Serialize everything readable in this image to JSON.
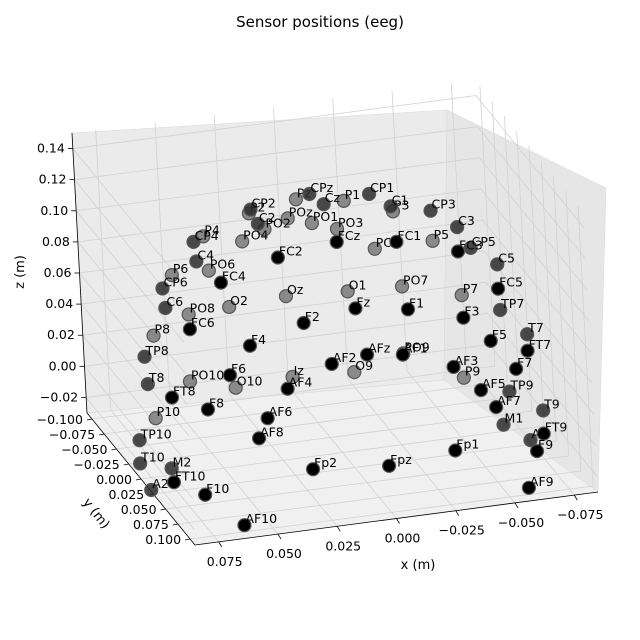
{
  "chart_data": {
    "type": "scatter",
    "title": "Sensor positions (eeg)",
    "xlabel": "x (m)",
    "ylabel": "y (m)",
    "zlabel": "z (m)",
    "x_ticks": [
      "0.075",
      "0.050",
      "0.025",
      "0.000",
      "−0.025",
      "−0.050",
      "−0.075"
    ],
    "y_ticks": [
      "−0.100",
      "−0.075",
      "−0.050",
      "−0.025",
      "0.000",
      "0.025",
      "0.050",
      "0.075",
      "0.100"
    ],
    "z_ticks": [
      "−0.02",
      "0.00",
      "0.02",
      "0.04",
      "0.06",
      "0.08",
      "0.10",
      "0.12",
      "0.14"
    ],
    "xlim": [
      -0.085,
      0.085
    ],
    "ylim": [
      -0.11,
      0.11
    ],
    "zlim": [
      -0.03,
      0.15
    ],
    "grid": true,
    "sensors": [
      {
        "name": "Fp1",
        "x": -0.03,
        "y": 0.09,
        "z": 0.0
      },
      {
        "name": "Fpz",
        "x": 0.0,
        "y": 0.1,
        "z": 0.0
      },
      {
        "name": "Fp2",
        "x": 0.03,
        "y": 0.09,
        "z": 0.0
      },
      {
        "name": "AF9",
        "x": -0.06,
        "y": 0.09,
        "z": -0.03
      },
      {
        "name": "AF7",
        "x": -0.05,
        "y": 0.08,
        "z": 0.02
      },
      {
        "name": "AF5",
        "x": -0.045,
        "y": 0.075,
        "z": 0.03
      },
      {
        "name": "AF3",
        "x": -0.035,
        "y": 0.07,
        "z": 0.045
      },
      {
        "name": "AF1",
        "x": -0.015,
        "y": 0.065,
        "z": 0.055
      },
      {
        "name": "AFz",
        "x": 0.0,
        "y": 0.065,
        "z": 0.058
      },
      {
        "name": "AF2",
        "x": 0.015,
        "y": 0.065,
        "z": 0.055
      },
      {
        "name": "AF4",
        "x": 0.035,
        "y": 0.07,
        "z": 0.045
      },
      {
        "name": "AF6",
        "x": 0.045,
        "y": 0.075,
        "z": 0.03
      },
      {
        "name": "AF8",
        "x": 0.05,
        "y": 0.08,
        "z": 0.02
      },
      {
        "name": "AF10",
        "x": 0.06,
        "y": 0.09,
        "z": -0.03
      },
      {
        "name": "F9",
        "x": -0.07,
        "y": 0.06,
        "z": -0.02
      },
      {
        "name": "F7",
        "x": -0.065,
        "y": 0.05,
        "z": 0.03
      },
      {
        "name": "F5",
        "x": -0.055,
        "y": 0.05,
        "z": 0.05
      },
      {
        "name": "F3",
        "x": -0.045,
        "y": 0.045,
        "z": 0.065
      },
      {
        "name": "F1",
        "x": -0.022,
        "y": 0.045,
        "z": 0.075
      },
      {
        "name": "Fz",
        "x": 0.0,
        "y": 0.045,
        "z": 0.08
      },
      {
        "name": "F2",
        "x": 0.022,
        "y": 0.045,
        "z": 0.075
      },
      {
        "name": "F4",
        "x": 0.045,
        "y": 0.045,
        "z": 0.065
      },
      {
        "name": "F6",
        "x": 0.055,
        "y": 0.05,
        "z": 0.05
      },
      {
        "name": "F8",
        "x": 0.065,
        "y": 0.05,
        "z": 0.03
      },
      {
        "name": "F10",
        "x": 0.07,
        "y": 0.06,
        "z": -0.02
      },
      {
        "name": "FT9",
        "x": -0.078,
        "y": 0.035,
        "z": -0.02
      },
      {
        "name": "FT7",
        "x": -0.075,
        "y": 0.025,
        "z": 0.03
      },
      {
        "name": "FC5",
        "x": -0.065,
        "y": 0.02,
        "z": 0.07
      },
      {
        "name": "FC3",
        "x": -0.05,
        "y": 0.015,
        "z": 0.095
      },
      {
        "name": "FC1",
        "x": -0.025,
        "y": 0.012,
        "z": 0.105
      },
      {
        "name": "FCz",
        "x": 0.0,
        "y": 0.012,
        "z": 0.11
      },
      {
        "name": "FC2",
        "x": 0.025,
        "y": 0.012,
        "z": 0.105
      },
      {
        "name": "FC4",
        "x": 0.05,
        "y": 0.015,
        "z": 0.095
      },
      {
        "name": "FC6",
        "x": 0.065,
        "y": 0.02,
        "z": 0.07
      },
      {
        "name": "FT8",
        "x": 0.075,
        "y": 0.025,
        "z": 0.03
      },
      {
        "name": "FT10",
        "x": 0.078,
        "y": 0.035,
        "z": -0.02
      },
      {
        "name": "T9",
        "x": -0.085,
        "y": 0.0,
        "z": -0.02
      },
      {
        "name": "T7",
        "x": -0.08,
        "y": 0.0,
        "z": 0.03
      },
      {
        "name": "C5",
        "x": -0.07,
        "y": -0.005,
        "z": 0.075
      },
      {
        "name": "C3",
        "x": -0.055,
        "y": -0.01,
        "z": 0.1
      },
      {
        "name": "C1",
        "x": -0.028,
        "y": -0.012,
        "z": 0.118
      },
      {
        "name": "Cz",
        "x": 0.0,
        "y": -0.012,
        "z": 0.125
      },
      {
        "name": "C2",
        "x": 0.028,
        "y": -0.012,
        "z": 0.118
      },
      {
        "name": "C4",
        "x": 0.055,
        "y": -0.01,
        "z": 0.1
      },
      {
        "name": "C6",
        "x": 0.07,
        "y": -0.005,
        "z": 0.075
      },
      {
        "name": "T8",
        "x": 0.08,
        "y": 0.0,
        "z": 0.03
      },
      {
        "name": "T10",
        "x": 0.085,
        "y": 0.0,
        "z": -0.02
      },
      {
        "name": "TP9",
        "x": -0.078,
        "y": -0.035,
        "z": -0.02
      },
      {
        "name": "TP7",
        "x": -0.075,
        "y": -0.03,
        "z": 0.035
      },
      {
        "name": "CP5",
        "x": -0.065,
        "y": -0.035,
        "z": 0.075
      },
      {
        "name": "CP3",
        "x": -0.05,
        "y": -0.04,
        "z": 0.1
      },
      {
        "name": "CP1",
        "x": -0.025,
        "y": -0.042,
        "z": 0.115
      },
      {
        "name": "CPz",
        "x": 0.0,
        "y": -0.042,
        "z": 0.12
      },
      {
        "name": "CP2",
        "x": 0.025,
        "y": -0.042,
        "z": 0.115
      },
      {
        "name": "CP4",
        "x": 0.05,
        "y": -0.04,
        "z": 0.1
      },
      {
        "name": "CP6",
        "x": 0.065,
        "y": -0.035,
        "z": 0.075
      },
      {
        "name": "TP8",
        "x": 0.075,
        "y": -0.03,
        "z": 0.035
      },
      {
        "name": "TP10",
        "x": 0.078,
        "y": -0.035,
        "z": -0.02
      },
      {
        "name": "P9",
        "x": -0.065,
        "y": -0.065,
        "z": -0.02
      },
      {
        "name": "P7",
        "x": -0.065,
        "y": -0.06,
        "z": 0.035
      },
      {
        "name": "P5",
        "x": -0.055,
        "y": -0.065,
        "z": 0.07
      },
      {
        "name": "P3",
        "x": -0.04,
        "y": -0.07,
        "z": 0.09
      },
      {
        "name": "P1",
        "x": -0.02,
        "y": -0.072,
        "z": 0.1
      },
      {
        "name": "Pz",
        "x": 0.0,
        "y": -0.072,
        "z": 0.105
      },
      {
        "name": "P2",
        "x": 0.02,
        "y": -0.072,
        "z": 0.1
      },
      {
        "name": "P4",
        "x": 0.04,
        "y": -0.07,
        "z": 0.09
      },
      {
        "name": "P6",
        "x": 0.055,
        "y": -0.065,
        "z": 0.07
      },
      {
        "name": "P8",
        "x": 0.065,
        "y": -0.06,
        "z": 0.035
      },
      {
        "name": "P10",
        "x": 0.065,
        "y": -0.065,
        "z": -0.02
      },
      {
        "name": "PO9",
        "x": -0.045,
        "y": -0.09,
        "z": -0.01
      },
      {
        "name": "PO7",
        "x": -0.045,
        "y": -0.085,
        "z": 0.035
      },
      {
        "name": "PO5",
        "x": -0.035,
        "y": -0.088,
        "z": 0.06
      },
      {
        "name": "PO3",
        "x": -0.02,
        "y": -0.09,
        "z": 0.075
      },
      {
        "name": "PO1",
        "x": -0.01,
        "y": -0.092,
        "z": 0.08
      },
      {
        "name": "POz",
        "x": 0.0,
        "y": -0.092,
        "z": 0.085
      },
      {
        "name": "PO2",
        "x": 0.01,
        "y": -0.092,
        "z": 0.08
      },
      {
        "name": "PO4",
        "x": 0.02,
        "y": -0.09,
        "z": 0.075
      },
      {
        "name": "PO6",
        "x": 0.035,
        "y": -0.088,
        "z": 0.06
      },
      {
        "name": "PO8",
        "x": 0.045,
        "y": -0.085,
        "z": 0.035
      },
      {
        "name": "PO10",
        "x": 0.045,
        "y": -0.09,
        "z": -0.01
      },
      {
        "name": "O1",
        "x": -0.025,
        "y": -0.1,
        "z": 0.03
      },
      {
        "name": "Oz",
        "x": 0.0,
        "y": -0.105,
        "z": 0.03
      },
      {
        "name": "O2",
        "x": 0.025,
        "y": -0.1,
        "z": 0.03
      },
      {
        "name": "O9",
        "x": -0.025,
        "y": -0.095,
        "z": -0.02
      },
      {
        "name": "Iz",
        "x": 0.0,
        "y": -0.1,
        "z": -0.02
      },
      {
        "name": "O10",
        "x": 0.025,
        "y": -0.095,
        "z": -0.02
      },
      {
        "name": "M1",
        "x": -0.07,
        "y": -0.01,
        "z": -0.03
      },
      {
        "name": "A1",
        "x": -0.08,
        "y": -0.005,
        "z": -0.04
      },
      {
        "name": "M2",
        "x": 0.07,
        "y": -0.01,
        "z": -0.03
      },
      {
        "name": "A2",
        "x": 0.08,
        "y": -0.005,
        "z": -0.04
      }
    ]
  }
}
